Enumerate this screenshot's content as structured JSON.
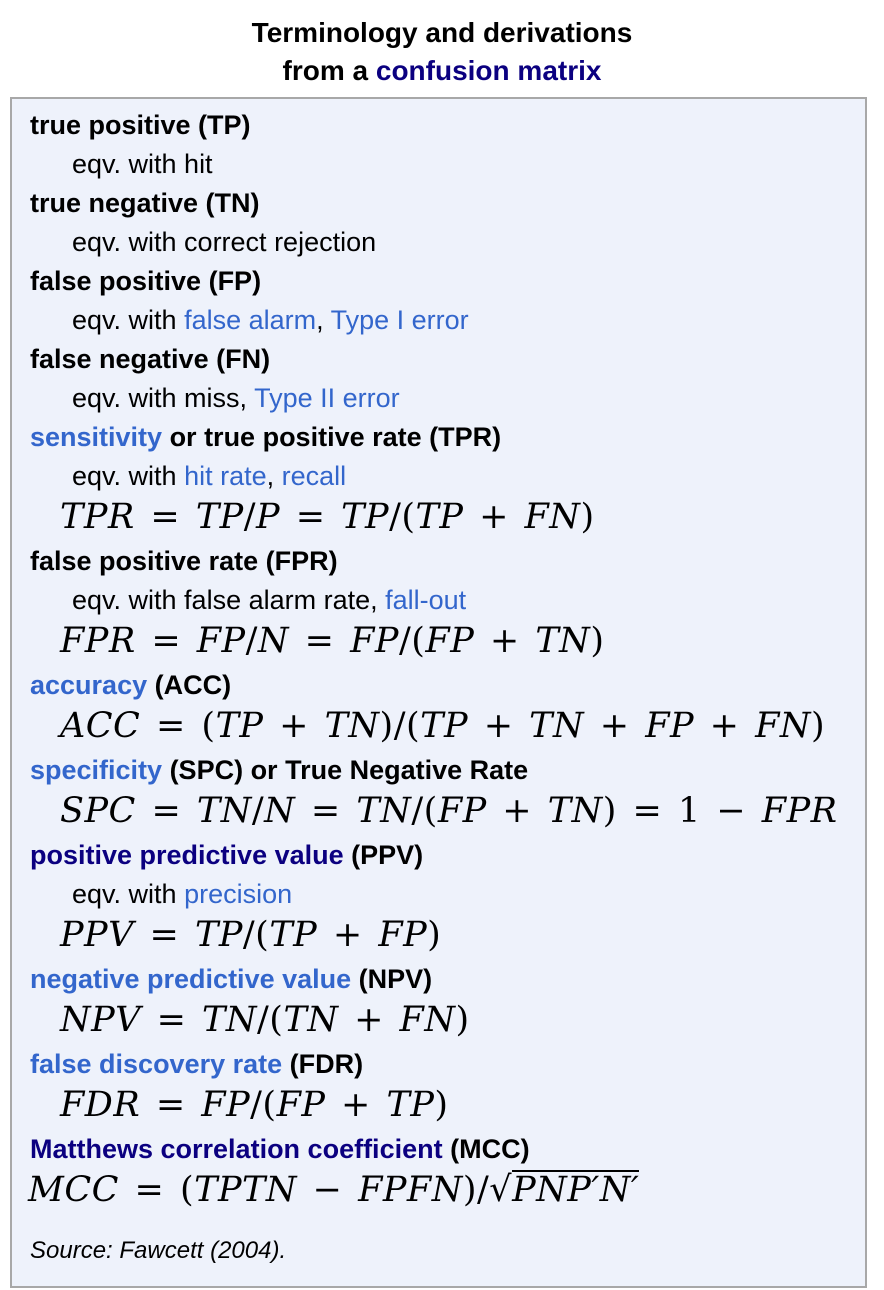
{
  "title": {
    "line1": "Terminology and derivations",
    "line2_prefix": "from a ",
    "line2_link": "confusion matrix"
  },
  "colors": {
    "link_blue": "#3366cc",
    "link_visited": "#0b0080",
    "box_background": "#eef2fb",
    "box_border": "#a8a8a8"
  },
  "entries": [
    {
      "term": [
        {
          "t": "true positive (TP)"
        }
      ],
      "defs": [
        {
          "type": "text",
          "parts": [
            {
              "t": "eqv. with hit"
            }
          ]
        }
      ]
    },
    {
      "term": [
        {
          "t": "true negative (TN)"
        }
      ],
      "defs": [
        {
          "type": "text",
          "parts": [
            {
              "t": "eqv. with correct rejection"
            }
          ]
        }
      ]
    },
    {
      "term": [
        {
          "t": "false positive (FP)"
        }
      ],
      "defs": [
        {
          "type": "text",
          "parts": [
            {
              "t": "eqv. with "
            },
            {
              "t": "false alarm",
              "c": "link"
            },
            {
              "t": ", "
            },
            {
              "t": "Type I error",
              "c": "link"
            }
          ]
        }
      ]
    },
    {
      "term": [
        {
          "t": "false negative (FN)"
        }
      ],
      "defs": [
        {
          "type": "text",
          "parts": [
            {
              "t": "eqv. with miss, "
            },
            {
              "t": "Type II error",
              "c": "link"
            }
          ]
        }
      ]
    },
    {
      "term": [
        {
          "t": "sensitivity",
          "c": "link"
        },
        {
          "t": " or true positive rate (TPR)"
        }
      ],
      "defs": [
        {
          "type": "text",
          "parts": [
            {
              "t": "eqv. with "
            },
            {
              "t": "hit rate",
              "c": "link"
            },
            {
              "t": ", "
            },
            {
              "t": "recall",
              "c": "link"
            }
          ]
        },
        {
          "type": "math",
          "text": "TPR = TP/P = TP/(TP + FN)"
        }
      ]
    },
    {
      "term": [
        {
          "t": "false positive rate (FPR)"
        }
      ],
      "defs": [
        {
          "type": "text",
          "parts": [
            {
              "t": "eqv. with false alarm rate, "
            },
            {
              "t": "fall-out",
              "c": "link"
            }
          ]
        },
        {
          "type": "math",
          "text": "FPR = FP/N = FP/(FP + TN)"
        }
      ]
    },
    {
      "term": [
        {
          "t": "accuracy",
          "c": "link"
        },
        {
          "t": " (ACC)"
        }
      ],
      "defs": [
        {
          "type": "math",
          "text": "ACC = (TP + TN)/(TP + TN + FP + FN)"
        }
      ]
    },
    {
      "term": [
        {
          "t": "specificity",
          "c": "link"
        },
        {
          "t": " (SPC) or True Negative Rate"
        }
      ],
      "defs": [
        {
          "type": "math",
          "text": "SPC = TN/N = TN/(FP + TN) = 1 − FPR"
        }
      ]
    },
    {
      "term": [
        {
          "t": "positive predictive value",
          "c": "visited"
        },
        {
          "t": " (PPV)"
        }
      ],
      "defs": [
        {
          "type": "text",
          "parts": [
            {
              "t": "eqv. with "
            },
            {
              "t": "precision",
              "c": "link"
            }
          ]
        },
        {
          "type": "math",
          "text": "PPV = TP/(TP + FP)"
        }
      ]
    },
    {
      "term": [
        {
          "t": "negative predictive value",
          "c": "link"
        },
        {
          "t": " (NPV)"
        }
      ],
      "defs": [
        {
          "type": "math",
          "text": "NPV = TN/(TN + FN)"
        }
      ]
    },
    {
      "term": [
        {
          "t": "false discovery rate",
          "c": "link"
        },
        {
          "t": " (FDR)"
        }
      ],
      "defs": [
        {
          "type": "math",
          "text": "FDR = FP/(FP + TP)"
        }
      ]
    },
    {
      "term": [
        {
          "t": "Matthews correlation coefficient",
          "c": "visited"
        },
        {
          "t": " (MCC)"
        }
      ],
      "defs": [
        {
          "type": "math",
          "text": "MCC = (TPTN − FPFN)/",
          "sqrt": "PNP′N′",
          "flush": true
        }
      ]
    }
  ],
  "source_note": "Source: Fawcett (2004)."
}
